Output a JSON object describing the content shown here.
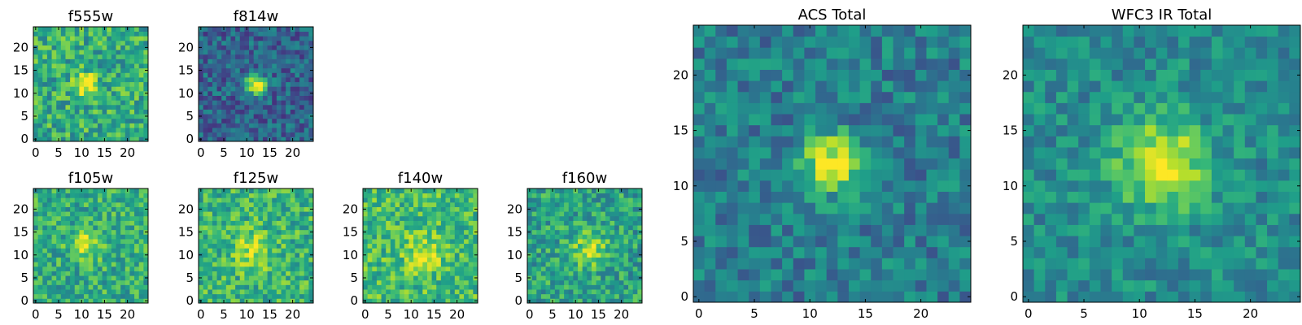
{
  "colormap": "viridis",
  "chart_data": [
    {
      "type": "heatmap",
      "title": "f555w",
      "xticks": [
        "0",
        "5",
        "10",
        "15",
        "20"
      ],
      "yticks": [
        "0",
        "5",
        "10",
        "15",
        "20"
      ],
      "xlim": [
        -0.5,
        24.5
      ],
      "ylim": [
        -0.5,
        24.5
      ],
      "source_center": [
        11,
        12
      ],
      "source_sigma": 1.6,
      "peak": 0.45,
      "base": 0.62,
      "noise": 0.22,
      "seed": 11
    },
    {
      "type": "heatmap",
      "title": "f814w",
      "xticks": [
        "0",
        "5",
        "10",
        "15",
        "20"
      ],
      "yticks": [
        "0",
        "5",
        "10",
        "15",
        "20"
      ],
      "xlim": [
        -0.5,
        24.5
      ],
      "ylim": [
        -0.5,
        24.5
      ],
      "source_center": [
        12,
        12
      ],
      "source_sigma": 1.5,
      "peak": 0.75,
      "base": 0.32,
      "noise": 0.18,
      "seed": 22
    },
    {
      "type": "heatmap",
      "title": "f105w",
      "xticks": [
        "0",
        "5",
        "10",
        "15",
        "20"
      ],
      "yticks": [
        "0",
        "5",
        "10",
        "15",
        "20"
      ],
      "xlim": [
        -0.5,
        24.5
      ],
      "ylim": [
        -0.5,
        24.5
      ],
      "source_center": [
        11,
        12
      ],
      "source_sigma": 2.2,
      "peak": 0.3,
      "base": 0.62,
      "noise": 0.2,
      "seed": 33
    },
    {
      "type": "heatmap",
      "title": "f125w",
      "xticks": [
        "0",
        "5",
        "10",
        "15",
        "20"
      ],
      "yticks": [
        "0",
        "5",
        "10",
        "15",
        "20"
      ],
      "xlim": [
        -0.5,
        24.5
      ],
      "ylim": [
        -0.5,
        24.5
      ],
      "source_center": [
        11,
        11
      ],
      "source_sigma": 2.8,
      "peak": 0.25,
      "base": 0.65,
      "noise": 0.2,
      "seed": 44
    },
    {
      "type": "heatmap",
      "title": "f140w",
      "xticks": [
        "0",
        "5",
        "10",
        "15",
        "20"
      ],
      "yticks": [
        "0",
        "5",
        "10",
        "15",
        "20"
      ],
      "xlim": [
        -0.5,
        24.5
      ],
      "ylim": [
        -0.5,
        24.5
      ],
      "source_center": [
        13,
        11
      ],
      "source_sigma": 3.0,
      "peak": 0.22,
      "base": 0.68,
      "noise": 0.2,
      "seed": 55
    },
    {
      "type": "heatmap",
      "title": "f160w",
      "xticks": [
        "0",
        "5",
        "10",
        "15",
        "20"
      ],
      "yticks": [
        "0",
        "5",
        "10",
        "15",
        "20"
      ],
      "xlim": [
        -0.5,
        24.5
      ],
      "ylim": [
        -0.5,
        24.5
      ],
      "source_center": [
        13,
        11
      ],
      "source_sigma": 2.6,
      "peak": 0.3,
      "base": 0.58,
      "noise": 0.2,
      "seed": 66
    },
    {
      "type": "heatmap",
      "title": "ACS Total",
      "xticks": [
        "0",
        "5",
        "10",
        "15",
        "20"
      ],
      "yticks": [
        "0",
        "5",
        "10",
        "15",
        "20"
      ],
      "xlim": [
        -0.5,
        24.5
      ],
      "ylim": [
        -0.5,
        24.5
      ],
      "source_center": [
        12,
        12
      ],
      "source_sigma": 1.8,
      "peak": 0.6,
      "base": 0.42,
      "noise": 0.17,
      "seed": 77
    },
    {
      "type": "heatmap",
      "title": "WFC3 IR Total",
      "xticks": [
        "0",
        "5",
        "10",
        "15",
        "20"
      ],
      "yticks": [
        "0",
        "5",
        "10",
        "15",
        "20"
      ],
      "xlim": [
        -0.5,
        24.5
      ],
      "ylim": [
        -0.5,
        24.5
      ],
      "source_center": [
        12,
        12
      ],
      "source_sigma": 2.8,
      "peak": 0.5,
      "base": 0.48,
      "noise": 0.15,
      "seed": 88
    }
  ]
}
